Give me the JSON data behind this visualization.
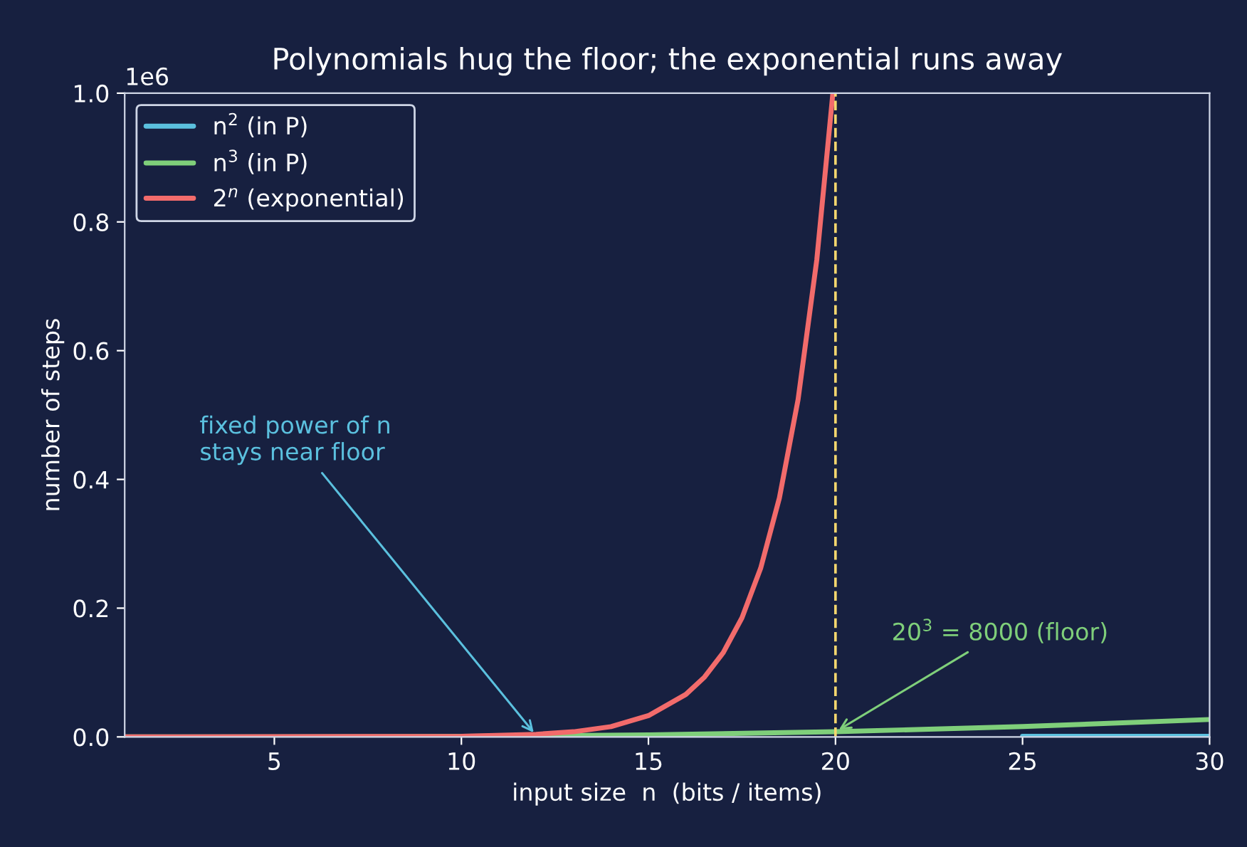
{
  "chart_data": {
    "type": "line",
    "title": "Polynomials hug the floor; the exponential runs away",
    "xlabel": "input size  n  (bits / items)",
    "ylabel": "number of steps",
    "series": [
      {
        "name": "n$^{2}$ (in P)",
        "color": "#5bc0de",
        "x": [
          25,
          30
        ],
        "values": [
          0.001,
          0.001
        ]
      },
      {
        "name": "n$^{3}$ (in P)",
        "color": "#7fcf7a",
        "x": [
          1,
          5,
          10,
          15,
          20,
          25,
          30
        ],
        "values": [
          0,
          0,
          0.001,
          0.003,
          0.008,
          0.016,
          0.027
        ]
      },
      {
        "name": "2$^{n}$ (exponential)",
        "color": "#f26b6b",
        "x": [
          1,
          10,
          12,
          13,
          14,
          15,
          16,
          16.5,
          17,
          17.5,
          18,
          18.5,
          19,
          19.5,
          19.93
        ],
        "values": [
          0,
          0.001,
          0.004,
          0.008,
          0.016,
          0.033,
          0.066,
          0.093,
          0.131,
          0.185,
          0.262,
          0.371,
          0.524,
          0.741,
          1.0
        ]
      }
    ],
    "xlim": [
      1,
      30
    ],
    "xticks": [
      5,
      10,
      15,
      20,
      25,
      30
    ],
    "ylim": [
      0,
      1.0
    ],
    "yticks": [
      {
        "value": 0,
        "label": "0.0"
      },
      0.2,
      0.4,
      0.6,
      0.8,
      {
        "value": 1,
        "label": "1.0"
      }
    ],
    "ref_lines": [
      {
        "axis": "x",
        "value": 20,
        "color": "#f5d76e",
        "line_style": "dashed"
      }
    ],
    "annotations": [
      "1e6",
      {
        "text": "fixed power of n\nstays near floor",
        "x": 12,
        "y": 0.002
      },
      {
        "text": "20$^{3}$ = 8000 (floor)",
        "x": 20,
        "y": 0.008
      }
    ],
    "legend": "top left",
    "grid": false
  }
}
